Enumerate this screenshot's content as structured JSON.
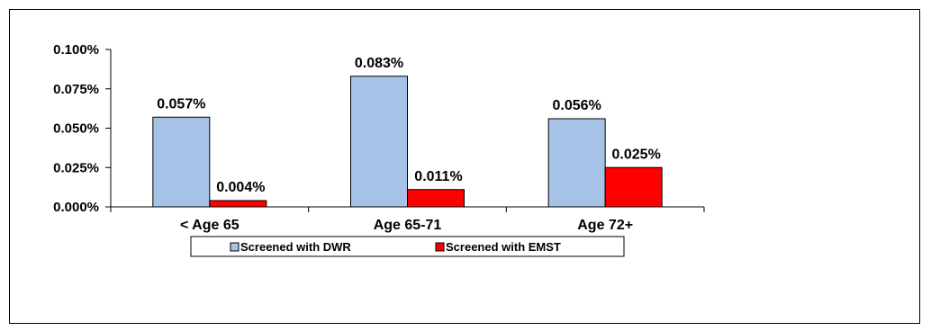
{
  "chart_data": {
    "type": "bar",
    "categories": [
      "< Age 65",
      "Age 65-71",
      "Age 72+"
    ],
    "series": [
      {
        "name": "Screened with DWR",
        "values": [
          0.057,
          0.083,
          0.056
        ],
        "labels": [
          "0.057%",
          "0.083%",
          "0.056%"
        ],
        "color": "#a6c2e6"
      },
      {
        "name": "Screened with EMST",
        "values": [
          0.004,
          0.011,
          0.025
        ],
        "labels": [
          "0.004%",
          "0.011%",
          "0.025%"
        ],
        "color": "#ff0000"
      }
    ],
    "ylim": [
      0,
      0.1
    ],
    "yticks": [
      0,
      0.025,
      0.05,
      0.075,
      0.1
    ],
    "ytick_labels": [
      "0.000%",
      "0.025%",
      "0.050%",
      "0.075%",
      "0.100%"
    ],
    "grid": false,
    "legend_position": "bottom",
    "title": "",
    "xlabel": "",
    "ylabel": ""
  }
}
